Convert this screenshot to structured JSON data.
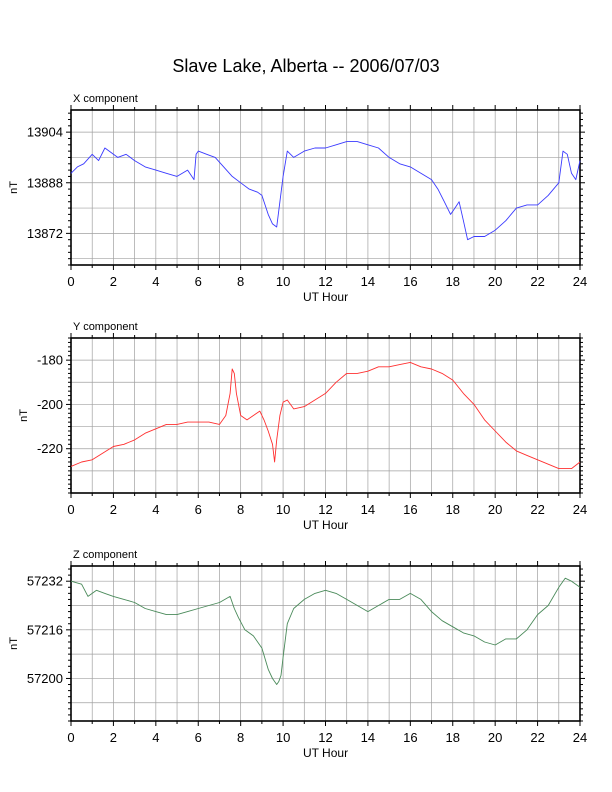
{
  "title": "Slave Lake, Alberta -- 2006/07/03",
  "chart_data": [
    {
      "type": "line",
      "panel_label": "X component",
      "ylabel": "nT",
      "xlabel": "UT Hour",
      "xlim": [
        0,
        24
      ],
      "ylim": [
        13862,
        13911
      ],
      "yticks": [
        13872,
        13888,
        13904
      ],
      "xticks": [
        0,
        2,
        4,
        6,
        8,
        10,
        12,
        14,
        16,
        18,
        20,
        22,
        24
      ],
      "grid": true,
      "color": "#3a3aff",
      "series": [
        {
          "x": [
            0,
            0.3,
            0.6,
            1.0,
            1.3,
            1.6,
            1.8,
            2.2,
            2.6,
            3.0,
            3.5,
            4.0,
            4.5,
            5.0,
            5.5,
            5.8,
            5.9,
            6.0,
            6.4,
            6.8,
            7.2,
            7.6,
            8.0,
            8.4,
            8.8,
            9.0,
            9.3,
            9.5,
            9.7,
            9.85,
            10.0,
            10.2,
            10.5,
            11.0,
            11.5,
            12.0,
            12.5,
            13.0,
            13.5,
            14.0,
            14.5,
            15.0,
            15.5,
            16.0,
            16.5,
            17.0,
            17.3,
            17.6,
            17.9,
            18.1,
            18.3,
            18.5,
            18.7,
            19.0,
            19.5,
            20.0,
            20.5,
            21.0,
            21.5,
            22.0,
            22.5,
            23.0,
            23.2,
            23.4,
            23.6,
            23.8,
            24.0
          ],
          "values": [
            13891,
            13893,
            13894,
            13897,
            13895,
            13899,
            13898,
            13896,
            13897,
            13895,
            13893,
            13892,
            13891,
            13890,
            13892,
            13889,
            13897,
            13898,
            13897,
            13896,
            13893,
            13890,
            13888,
            13886,
            13885,
            13884,
            13878,
            13875,
            13874,
            13882,
            13890,
            13898,
            13896,
            13898,
            13899,
            13899,
            13900,
            13901,
            13901,
            13900,
            13899,
            13896,
            13894,
            13893,
            13891,
            13889,
            13886,
            13882,
            13878,
            13880,
            13882,
            13876,
            13870,
            13871,
            13871,
            13873,
            13876,
            13880,
            13881,
            13881,
            13884,
            13888,
            13898,
            13897,
            13891,
            13889,
            13895
          ]
        }
      ]
    },
    {
      "type": "line",
      "panel_label": "Y component",
      "ylabel": "nT",
      "xlabel": "UT Hour",
      "xlim": [
        0,
        24
      ],
      "ylim": [
        -240,
        -170
      ],
      "yticks": [
        -220,
        -200,
        -180
      ],
      "xticks": [
        0,
        2,
        4,
        6,
        8,
        10,
        12,
        14,
        16,
        18,
        20,
        22,
        24
      ],
      "grid": true,
      "color": "#ff3030",
      "series": [
        {
          "x": [
            0,
            0.5,
            1.0,
            1.5,
            2.0,
            2.5,
            3.0,
            3.5,
            4.0,
            4.5,
            5.0,
            5.5,
            6.0,
            6.5,
            7.0,
            7.3,
            7.5,
            7.6,
            7.7,
            7.8,
            8.0,
            8.3,
            8.6,
            8.9,
            9.1,
            9.3,
            9.5,
            9.6,
            9.7,
            9.85,
            10.0,
            10.2,
            10.5,
            11.0,
            11.5,
            12.0,
            12.5,
            13.0,
            13.5,
            14.0,
            14.5,
            15.0,
            15.5,
            16.0,
            16.5,
            17.0,
            17.5,
            18.0,
            18.5,
            19.0,
            19.5,
            20.0,
            20.5,
            21.0,
            21.5,
            22.0,
            22.5,
            23.0,
            23.3,
            23.6,
            24.0
          ],
          "values": [
            -228,
            -226,
            -225,
            -222,
            -219,
            -218,
            -216,
            -213,
            -211,
            -209,
            -209,
            -208,
            -208,
            -208,
            -209,
            -205,
            -195,
            -184,
            -186,
            -195,
            -205,
            -207,
            -205,
            -203,
            -207,
            -212,
            -218,
            -226,
            -216,
            -205,
            -199,
            -198,
            -202,
            -201,
            -198,
            -195,
            -190,
            -186,
            -186,
            -185,
            -183,
            -183,
            -182,
            -181,
            -183,
            -184,
            -186,
            -189,
            -195,
            -200,
            -207,
            -212,
            -217,
            -221,
            -223,
            -225,
            -227,
            -229,
            -229,
            -229,
            -226
          ]
        }
      ]
    },
    {
      "type": "line",
      "panel_label": "Z component",
      "ylabel": "nT",
      "xlabel": "UT Hour",
      "xlim": [
        0,
        24
      ],
      "ylim": [
        57186,
        57237
      ],
      "yticks": [
        57200,
        57216,
        57232
      ],
      "xticks": [
        0,
        2,
        4,
        6,
        8,
        10,
        12,
        14,
        16,
        18,
        20,
        22,
        24
      ],
      "grid": true,
      "color": "#4a8a5a",
      "series": [
        {
          "x": [
            0,
            0.5,
            0.8,
            1.2,
            1.6,
            2.0,
            2.5,
            3.0,
            3.5,
            4.0,
            4.5,
            5.0,
            5.5,
            6.0,
            6.5,
            7.0,
            7.5,
            7.7,
            7.9,
            8.2,
            8.6,
            9.0,
            9.3,
            9.5,
            9.7,
            9.8,
            9.9,
            10.0,
            10.2,
            10.5,
            11.0,
            11.5,
            12.0,
            12.5,
            13.0,
            13.5,
            14.0,
            14.5,
            15.0,
            15.5,
            16.0,
            16.5,
            17.0,
            17.5,
            18.0,
            18.5,
            19.0,
            19.5,
            20.0,
            20.5,
            21.0,
            21.5,
            22.0,
            22.5,
            23.0,
            23.3,
            23.6,
            24.0
          ],
          "values": [
            57232,
            57231,
            57227,
            57229,
            57228,
            57227,
            57226,
            57225,
            57223,
            57222,
            57221,
            57221,
            57222,
            57223,
            57224,
            57225,
            57227,
            57223,
            57220,
            57216,
            57214,
            57210,
            57203,
            57200,
            57198,
            57199,
            57201,
            57207,
            57218,
            57223,
            57226,
            57228,
            57229,
            57228,
            57226,
            57224,
            57222,
            57224,
            57226,
            57226,
            57228,
            57226,
            57222,
            57219,
            57217,
            57215,
            57214,
            57212,
            57211,
            57213,
            57213,
            57216,
            57221,
            57224,
            57230,
            57233,
            57232,
            57230
          ]
        }
      ]
    }
  ]
}
